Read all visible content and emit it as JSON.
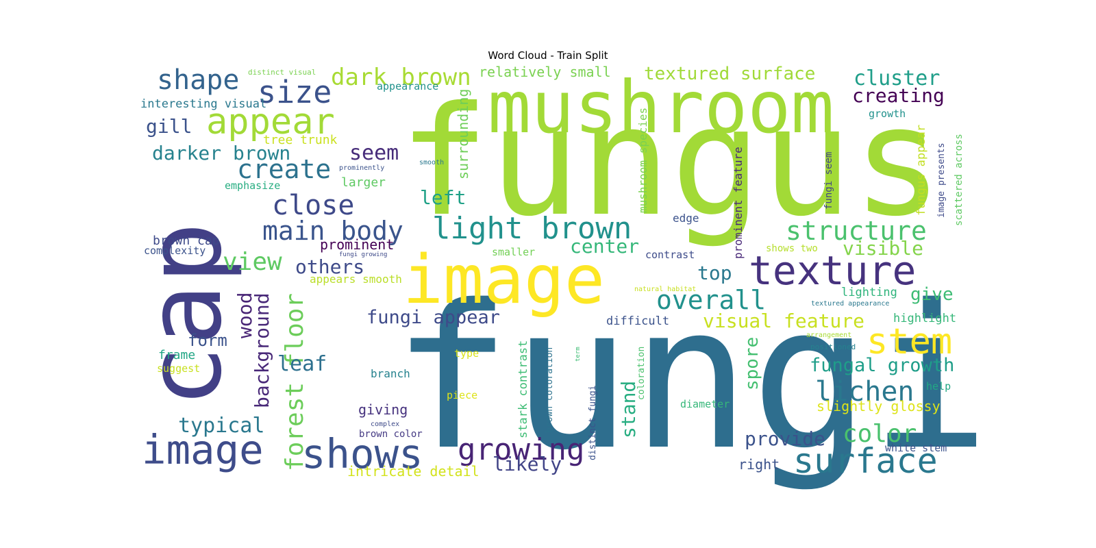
{
  "chart_data": {
    "type": "wordcloud",
    "title": "Word Cloud - Train Split",
    "background": "#ffffff",
    "colormap": "viridis",
    "words": [
      {
        "text": "fungi",
        "color": "#2e6e8e"
      },
      {
        "text": "fungus",
        "color": "#a2da37"
      },
      {
        "text": "cap",
        "color": "#424086"
      },
      {
        "text": "mushroom",
        "color": "#a2da37"
      },
      {
        "text": "image",
        "color": "#fde725"
      },
      {
        "text": "texture",
        "color": "#46327e"
      },
      {
        "text": "image",
        "color": "#3e4c8a"
      },
      {
        "text": "shows",
        "color": "#3b528b"
      },
      {
        "text": "light brown",
        "color": "#21918c"
      },
      {
        "text": "main body",
        "color": "#3a548c"
      },
      {
        "text": "appear",
        "color": "#a2da37"
      },
      {
        "text": "size",
        "color": "#3b528b"
      },
      {
        "text": "shape",
        "color": "#33638d"
      },
      {
        "text": "dark brown",
        "color": "#a8db34"
      },
      {
        "text": "structure",
        "color": "#4ac16d"
      },
      {
        "text": "surface",
        "color": "#2a788e"
      },
      {
        "text": "stem",
        "color": "#fde725"
      },
      {
        "text": "growing",
        "color": "#482475"
      },
      {
        "text": "close",
        "color": "#3e4989"
      },
      {
        "text": "create",
        "color": "#2c728e"
      },
      {
        "text": "overall",
        "color": "#21918c"
      },
      {
        "text": "lichen",
        "color": "#2a788e"
      },
      {
        "text": "color",
        "color": "#4ac16d"
      },
      {
        "text": "cluster",
        "color": "#1f9e89"
      },
      {
        "text": "creating",
        "color": "#440154"
      },
      {
        "text": "forest floor",
        "color": "#6ccd5a"
      },
      {
        "text": "visual feature",
        "color": "#c8e020"
      },
      {
        "text": "view",
        "color": "#5ec962"
      },
      {
        "text": "fungal growth",
        "color": "#1f9e89"
      },
      {
        "text": "fungi appear",
        "color": "#3e4a89"
      },
      {
        "text": "background",
        "color": "#482878"
      },
      {
        "text": "typical",
        "color": "#2a788e"
      },
      {
        "text": "provide",
        "color": "#3b528b"
      },
      {
        "text": "darker brown",
        "color": "#26828e"
      },
      {
        "text": "textured surface",
        "color": "#a0da39"
      },
      {
        "text": "visible",
        "color": "#84d44b"
      },
      {
        "text": "others",
        "color": "#3e4a89"
      },
      {
        "text": "seem",
        "color": "#472c7a"
      },
      {
        "text": "center",
        "color": "#35b779"
      },
      {
        "text": "stand",
        "color": "#27ad81"
      },
      {
        "text": "leaf",
        "color": "#2d708e"
      },
      {
        "text": "likely",
        "color": "#414487"
      },
      {
        "text": "wood",
        "color": "#482475"
      },
      {
        "text": "top",
        "color": "#2a788e"
      },
      {
        "text": "give",
        "color": "#3dbc74"
      },
      {
        "text": "gill",
        "color": "#3b528b"
      },
      {
        "text": "spore",
        "color": "#44bf70"
      },
      {
        "text": "left",
        "color": "#1fa187"
      },
      {
        "text": "form",
        "color": "#3b528b"
      },
      {
        "text": "relatively small",
        "color": "#7ad151"
      },
      {
        "text": "intricate detail",
        "color": "#d2e21b"
      },
      {
        "text": "surrounding",
        "color": "#6ece58"
      },
      {
        "text": "prominent",
        "color": "#440154"
      },
      {
        "text": "giving",
        "color": "#46327e"
      },
      {
        "text": "slightly glossy",
        "color": "#dde318"
      },
      {
        "text": "tree trunk",
        "color": "#cae11f"
      },
      {
        "text": "larger",
        "color": "#5ec962"
      },
      {
        "text": "right",
        "color": "#3b528b"
      },
      {
        "text": "brown cap",
        "color": "#3e4a89"
      },
      {
        "text": "difficult",
        "color": "#3b528b"
      },
      {
        "text": "interesting visual",
        "color": "#2a788e"
      },
      {
        "text": "stark contrast",
        "color": "#3dbc74"
      },
      {
        "text": "fungus appear",
        "color": "#c2df23"
      },
      {
        "text": "highlight",
        "color": "#35b779"
      },
      {
        "text": "lighting",
        "color": "#2fb47c"
      },
      {
        "text": "frame",
        "color": "#21a685"
      },
      {
        "text": "emphasize",
        "color": "#27ad81"
      },
      {
        "text": "appears smooth",
        "color": "#bade28"
      },
      {
        "text": "white stem",
        "color": "#3b528b"
      },
      {
        "text": "branch",
        "color": "#26828e"
      },
      {
        "text": "prominent feature",
        "color": "#482878"
      },
      {
        "text": "mushroom species",
        "color": "#7ad151"
      },
      {
        "text": "complexity",
        "color": "#3b528b"
      },
      {
        "text": "contrast",
        "color": "#3e4c8a"
      },
      {
        "text": "fungi seem",
        "color": "#414487"
      },
      {
        "text": "edge",
        "color": "#3b528b"
      },
      {
        "text": "suggest",
        "color": "#c8e020"
      },
      {
        "text": "help",
        "color": "#22a884"
      },
      {
        "text": "appearance",
        "color": "#21918c"
      },
      {
        "text": "smaller",
        "color": "#73d056"
      },
      {
        "text": "growth",
        "color": "#21918c"
      },
      {
        "text": "shows two",
        "color": "#b5de2b"
      },
      {
        "text": "piece",
        "color": "#dde318"
      },
      {
        "text": "diameter",
        "color": "#35b779"
      },
      {
        "text": "type",
        "color": "#d8e219"
      },
      {
        "text": "brown color",
        "color": "#443983"
      },
      {
        "text": "scattered across",
        "color": "#5ec962"
      },
      {
        "text": "image presents",
        "color": "#3e4a89"
      },
      {
        "text": "coloration",
        "color": "#4ac16d"
      },
      {
        "text": "brown coloration",
        "color": "#2c728e"
      },
      {
        "text": "distinct fungi",
        "color": "#3b528b"
      },
      {
        "text": "distinct visual",
        "color": "#7ad151"
      },
      {
        "text": "prominently",
        "color": "#3b528b"
      },
      {
        "text": "smooth",
        "color": "#2a788e"
      },
      {
        "text": "fungi growing",
        "color": "#3e4a89"
      },
      {
        "text": "natural habitat",
        "color": "#c8e020"
      },
      {
        "text": "textured appearance",
        "color": "#2a788e"
      },
      {
        "text": "arrangement",
        "color": "#a8db34"
      },
      {
        "text": "positioned",
        "color": "#26828e"
      },
      {
        "text": "complex",
        "color": "#3e4a89"
      },
      {
        "text": "term",
        "color": "#3dbc74"
      }
    ]
  }
}
